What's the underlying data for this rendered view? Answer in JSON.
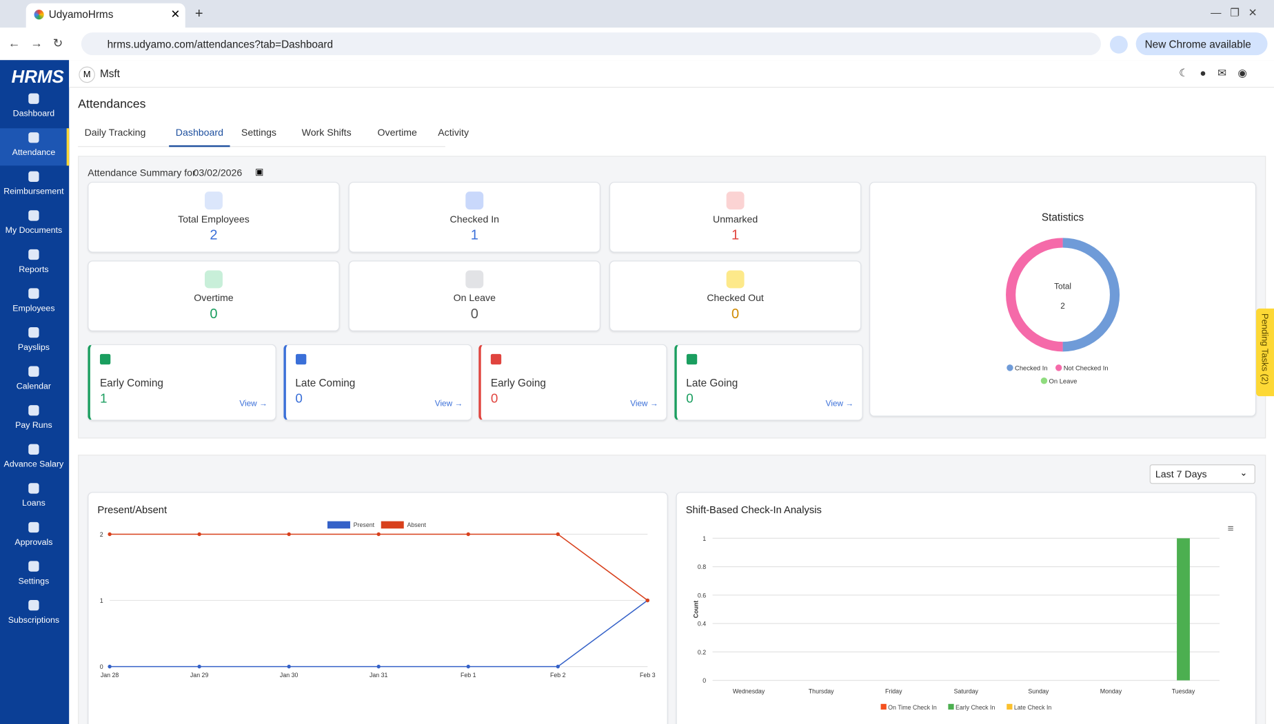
{
  "browser": {
    "tab_title": "UdyamoHrms",
    "url": "hrms.udyamo.com/attendances?tab=Dashboard",
    "update_button": "New Chrome available"
  },
  "sidebar": {
    "logo": "HRMS",
    "items": [
      "Dashboard",
      "Attendance",
      "Reimbursement",
      "My Documents",
      "Reports",
      "Employees",
      "Payslips",
      "Calendar",
      "Pay Runs",
      "Advance Salary",
      "Loans",
      "Approvals",
      "Settings",
      "Subscriptions"
    ],
    "active": 1
  },
  "topbar": {
    "org_initial": "M",
    "org_name": "Msft"
  },
  "page": {
    "title": "Attendances",
    "tabs": [
      "Daily Tracking",
      "Dashboard",
      "Settings",
      "Work Shifts",
      "Overtime",
      "Activity"
    ],
    "active_tab": 1
  },
  "summary": {
    "label": "Attendance Summary for",
    "date": "03/02/2026",
    "cards": [
      {
        "label": "Total Employees",
        "value": 2,
        "color": "#3a6fd8",
        "bg": "#dbe6fb"
      },
      {
        "label": "Checked In",
        "value": 1,
        "color": "#3a6fd8",
        "bg": "#c9d8fb"
      },
      {
        "label": "Unmarked",
        "value": 1,
        "color": "#e0443e",
        "bg": "#fbd3d3"
      },
      {
        "label": "Overtime",
        "value": 0,
        "color": "#1a9e5f",
        "bg": "#c8efd9"
      },
      {
        "label": "On Leave",
        "value": 0,
        "color": "#555555",
        "bg": "#e2e3e6"
      },
      {
        "label": "Checked Out",
        "value": 0,
        "color": "#d08a00",
        "bg": "#fde98a"
      }
    ],
    "details": [
      {
        "label": "Early Coming",
        "value": 1,
        "color": "#1a9e5f",
        "link": "View →"
      },
      {
        "label": "Late Coming",
        "value": 0,
        "color": "#3a6fd8",
        "link": "View →"
      },
      {
        "label": "Early Going",
        "value": 0,
        "color": "#e0443e",
        "link": "View →"
      },
      {
        "label": "Late Going",
        "value": 0,
        "color": "#1a9e5f",
        "link": "View →"
      }
    ]
  },
  "statistics": {
    "type": "donut",
    "title": "Statistics",
    "center_label": "Total",
    "total": 2,
    "series": [
      {
        "name": "Checked In",
        "color": "#6f9bd8",
        "value": 1
      },
      {
        "name": "Not Checked In",
        "color": "#f56aa9",
        "value": 1
      },
      {
        "name": "On Leave",
        "color": "#8fdc7e",
        "value": 0
      }
    ]
  },
  "pending_tasks": "Pending Tasks (2)",
  "range_select": "Last 7 Days",
  "chart_data": [
    {
      "type": "line",
      "title": "Present/Absent",
      "categories": [
        "Jan 28",
        "Jan 29",
        "Jan 30",
        "Jan 31",
        "Feb 1",
        "Feb 2",
        "Feb 3"
      ],
      "series": [
        {
          "name": "Present",
          "color": "#3461c8",
          "values": [
            0,
            0,
            0,
            0,
            0,
            0,
            1
          ]
        },
        {
          "name": "Absent",
          "color": "#d8401c",
          "values": [
            2,
            2,
            2,
            2,
            2,
            2,
            1
          ]
        }
      ],
      "ylim": [
        0,
        2
      ],
      "yticks": [
        0,
        1,
        2
      ],
      "grid": true
    },
    {
      "type": "bar",
      "title": "Shift-Based Check-In Analysis",
      "y_label": "Count",
      "categories": [
        "Wednesday",
        "Thursday",
        "Friday",
        "Saturday",
        "Sunday",
        "Monday",
        "Tuesday"
      ],
      "series": [
        {
          "name": "On Time Check In",
          "color": "#f4511e",
          "values": [
            0,
            0,
            0,
            0,
            0,
            0,
            0
          ]
        },
        {
          "name": "Early Check In",
          "color": "#4caf50",
          "values": [
            0,
            0,
            0,
            0,
            0,
            0,
            1
          ]
        },
        {
          "name": "Late Check In",
          "color": "#fbc02d",
          "values": [
            0,
            0,
            0,
            0,
            0,
            0,
            0
          ]
        }
      ],
      "ylim": [
        0,
        1
      ],
      "yticks": [
        0,
        0.2,
        0.4,
        0.6,
        0.8,
        1
      ],
      "grid": true
    }
  ]
}
